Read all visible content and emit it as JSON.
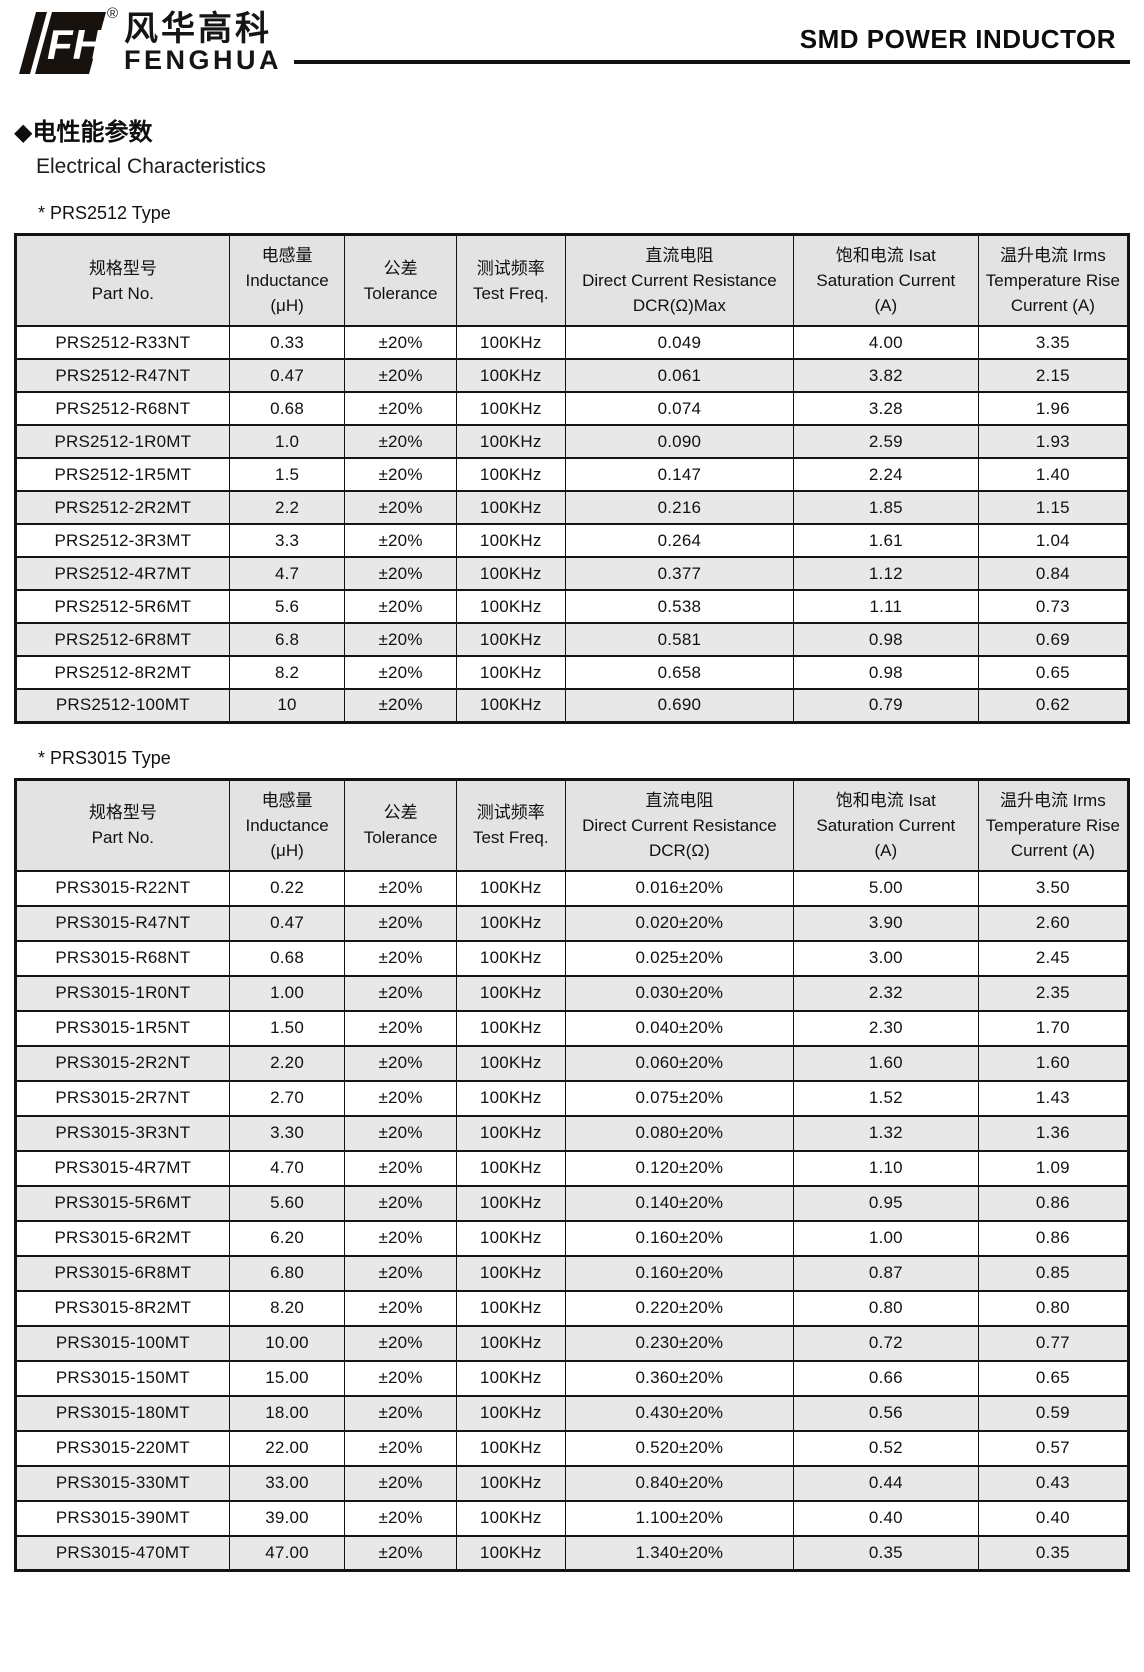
{
  "header": {
    "logo": {
      "icon_text": "FH",
      "registered": "®",
      "cn": "风华高科",
      "en": "FENGHUA"
    },
    "title": "SMD POWER INDUCTOR"
  },
  "section": {
    "title_cn": "◆电性能参数",
    "title_en": "Electrical Characteristics"
  },
  "colors": {
    "header_bg": "#e3e3e3",
    "stripe_bg": "#e8e8e8",
    "border": "#141414",
    "ink": "#111111"
  },
  "tables": [
    {
      "caption": "* PRS2512 Type",
      "headers": [
        {
          "cn": "规格型号",
          "en": "Part No.",
          "sub": ""
        },
        {
          "cn": "电感量",
          "en": "Inductance",
          "sub": "(μH)"
        },
        {
          "cn": "公差",
          "en": "Tolerance",
          "sub": ""
        },
        {
          "cn": "测试频率",
          "en": "Test Freq.",
          "sub": ""
        },
        {
          "cn": "直流电阻",
          "en": "Direct Current Resistance",
          "sub": "DCR(Ω)Max"
        },
        {
          "cn": "饱和电流  Isat",
          "en": "Saturation Current",
          "sub": "(A)"
        },
        {
          "cn": "温升电流  Irms",
          "en": "Temperature Rise",
          "sub": "Current (A)"
        }
      ],
      "rows": [
        [
          "PRS2512-R33NT",
          "0.33",
          "±20%",
          "100KHz",
          "0.049",
          "4.00",
          "3.35"
        ],
        [
          "PRS2512-R47NT",
          "0.47",
          "±20%",
          "100KHz",
          "0.061",
          "3.82",
          "2.15"
        ],
        [
          "PRS2512-R68NT",
          "0.68",
          "±20%",
          "100KHz",
          "0.074",
          "3.28",
          "1.96"
        ],
        [
          "PRS2512-1R0MT",
          "1.0",
          "±20%",
          "100KHz",
          "0.090",
          "2.59",
          "1.93"
        ],
        [
          "PRS2512-1R5MT",
          "1.5",
          "±20%",
          "100KHz",
          "0.147",
          "2.24",
          "1.40"
        ],
        [
          "PRS2512-2R2MT",
          "2.2",
          "±20%",
          "100KHz",
          "0.216",
          "1.85",
          "1.15"
        ],
        [
          "PRS2512-3R3MT",
          "3.3",
          "±20%",
          "100KHz",
          "0.264",
          "1.61",
          "1.04"
        ],
        [
          "PRS2512-4R7MT",
          "4.7",
          "±20%",
          "100KHz",
          "0.377",
          "1.12",
          "0.84"
        ],
        [
          "PRS2512-5R6MT",
          "5.6",
          "±20%",
          "100KHz",
          "0.538",
          "1.11",
          "0.73"
        ],
        [
          "PRS2512-6R8MT",
          "6.8",
          "±20%",
          "100KHz",
          "0.581",
          "0.98",
          "0.69"
        ],
        [
          "PRS2512-8R2MT",
          "8.2",
          "±20%",
          "100KHz",
          "0.658",
          "0.98",
          "0.65"
        ],
        [
          "PRS2512-100MT",
          "10",
          "±20%",
          "100KHz",
          "0.690",
          "0.79",
          "0.62"
        ]
      ]
    },
    {
      "caption": "* PRS3015 Type",
      "headers": [
        {
          "cn": "规格型号",
          "en": "Part No.",
          "sub": ""
        },
        {
          "cn": "电感量",
          "en": "Inductance",
          "sub": "(μH)"
        },
        {
          "cn": "公差",
          "en": "Tolerance",
          "sub": ""
        },
        {
          "cn": "测试频率",
          "en": "Test Freq.",
          "sub": ""
        },
        {
          "cn": "直流电阻",
          "en": "Direct Current Resistance",
          "sub": "DCR(Ω)"
        },
        {
          "cn": "饱和电流  Isat",
          "en": "Saturation Current",
          "sub": "(A)"
        },
        {
          "cn": "温升电流  Irms",
          "en": "Temperature Rise",
          "sub": "Current (A)"
        }
      ],
      "rows": [
        [
          "PRS3015-R22NT",
          "0.22",
          "±20%",
          "100KHz",
          "0.016±20%",
          "5.00",
          "3.50"
        ],
        [
          "PRS3015-R47NT",
          "0.47",
          "±20%",
          "100KHz",
          "0.020±20%",
          "3.90",
          "2.60"
        ],
        [
          "PRS3015-R68NT",
          "0.68",
          "±20%",
          "100KHz",
          "0.025±20%",
          "3.00",
          "2.45"
        ],
        [
          "PRS3015-1R0NT",
          "1.00",
          "±20%",
          "100KHz",
          "0.030±20%",
          "2.32",
          "2.35"
        ],
        [
          "PRS3015-1R5NT",
          "1.50",
          "±20%",
          "100KHz",
          "0.040±20%",
          "2.30",
          "1.70"
        ],
        [
          "PRS3015-2R2NT",
          "2.20",
          "±20%",
          "100KHz",
          "0.060±20%",
          "1.60",
          "1.60"
        ],
        [
          "PRS3015-2R7NT",
          "2.70",
          "±20%",
          "100KHz",
          "0.075±20%",
          "1.52",
          "1.43"
        ],
        [
          "PRS3015-3R3NT",
          "3.30",
          "±20%",
          "100KHz",
          "0.080±20%",
          "1.32",
          "1.36"
        ],
        [
          "PRS3015-4R7MT",
          "4.70",
          "±20%",
          "100KHz",
          "0.120±20%",
          "1.10",
          "1.09"
        ],
        [
          "PRS3015-5R6MT",
          "5.60",
          "±20%",
          "100KHz",
          "0.140±20%",
          "0.95",
          "0.86"
        ],
        [
          "PRS3015-6R2MT",
          "6.20",
          "±20%",
          "100KHz",
          "0.160±20%",
          "1.00",
          "0.86"
        ],
        [
          "PRS3015-6R8MT",
          "6.80",
          "±20%",
          "100KHz",
          "0.160±20%",
          "0.87",
          "0.85"
        ],
        [
          "PRS3015-8R2MT",
          "8.20",
          "±20%",
          "100KHz",
          "0.220±20%",
          "0.80",
          "0.80"
        ],
        [
          "PRS3015-100MT",
          "10.00",
          "±20%",
          "100KHz",
          "0.230±20%",
          "0.72",
          "0.77"
        ],
        [
          "PRS3015-150MT",
          "15.00",
          "±20%",
          "100KHz",
          "0.360±20%",
          "0.66",
          "0.65"
        ],
        [
          "PRS3015-180MT",
          "18.00",
          "±20%",
          "100KHz",
          "0.430±20%",
          "0.56",
          "0.59"
        ],
        [
          "PRS3015-220MT",
          "22.00",
          "±20%",
          "100KHz",
          "0.520±20%",
          "0.52",
          "0.57"
        ],
        [
          "PRS3015-330MT",
          "33.00",
          "±20%",
          "100KHz",
          "0.840±20%",
          "0.44",
          "0.43"
        ],
        [
          "PRS3015-390MT",
          "39.00",
          "±20%",
          "100KHz",
          "1.100±20%",
          "0.40",
          "0.40"
        ],
        [
          "PRS3015-470MT",
          "47.00",
          "±20%",
          "100KHz",
          "1.340±20%",
          "0.35",
          "0.35"
        ]
      ]
    }
  ]
}
